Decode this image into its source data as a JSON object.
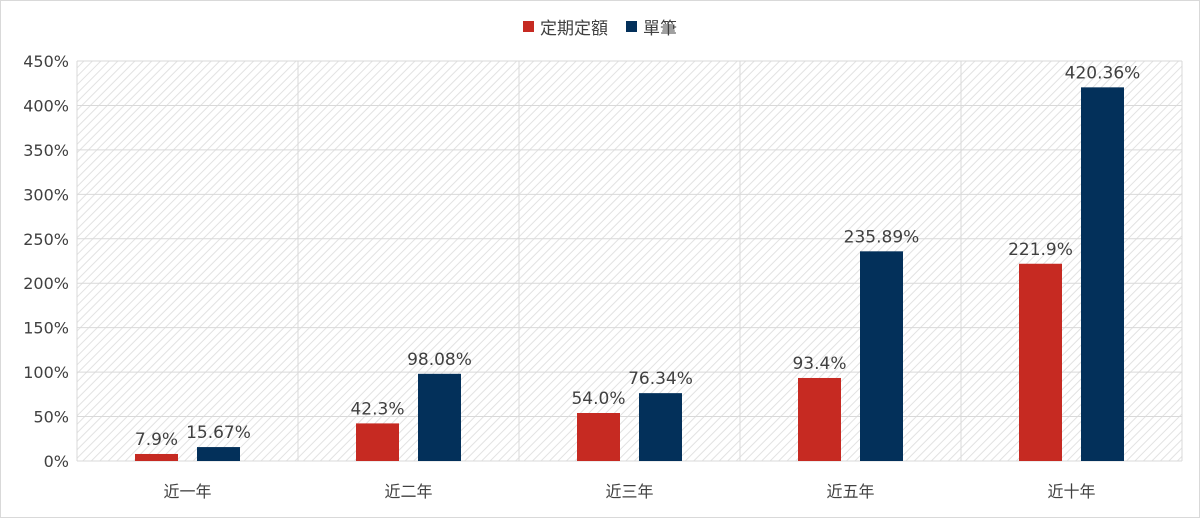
{
  "chart_data": {
    "type": "bar",
    "categories": [
      "近一年",
      "近二年",
      "近三年",
      "近五年",
      "近十年"
    ],
    "series": [
      {
        "name": "定期定額",
        "color": "#c62a22",
        "values": [
          7.9,
          42.3,
          54.0,
          93.4,
          221.9
        ],
        "labels": [
          "7.9%",
          "42.3%",
          "54.0%",
          "93.4%",
          "221.9%"
        ]
      },
      {
        "name": "單筆",
        "color": "#03305a",
        "values": [
          15.67,
          98.08,
          76.34,
          235.89,
          420.36
        ],
        "labels": [
          "15.67%",
          "98.08%",
          "76.34%",
          "235.89%",
          "420.36%"
        ]
      }
    ],
    "y_ticks": [
      "0%",
      "50%",
      "100%",
      "150%",
      "200%",
      "250%",
      "300%",
      "350%",
      "400%",
      "450%"
    ],
    "ylim": [
      0,
      450
    ],
    "y_unit": "%",
    "grid": true,
    "legend_position": "top-center"
  }
}
